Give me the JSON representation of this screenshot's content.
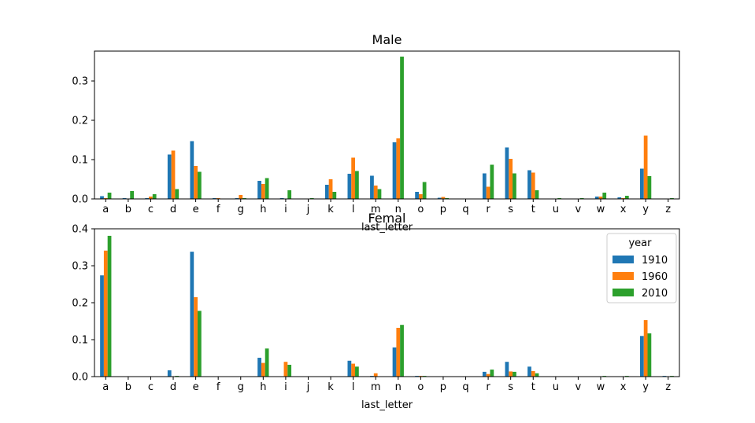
{
  "chart_data": [
    {
      "type": "bar",
      "title": "Male",
      "xlabel": "last_letter",
      "ylabel": "",
      "ylim": [
        0,
        0.376
      ],
      "yticks": [
        0.0,
        0.1,
        0.2,
        0.3
      ],
      "ytick_labels": [
        "0.0",
        "0.1",
        "0.2",
        "0.3"
      ],
      "grid": false,
      "categories": [
        "a",
        "b",
        "c",
        "d",
        "e",
        "f",
        "g",
        "h",
        "i",
        "j",
        "k",
        "l",
        "m",
        "n",
        "o",
        "p",
        "q",
        "r",
        "s",
        "t",
        "u",
        "v",
        "w",
        "x",
        "y",
        "z"
      ],
      "series": [
        {
          "name": "1910",
          "values": [
            0.007,
            0.002,
            0.002,
            0.113,
            0.147,
            0.002,
            0.002,
            0.046,
            0.002,
            0.001,
            0.036,
            0.064,
            0.059,
            0.144,
            0.018,
            0.003,
            0.0,
            0.065,
            0.131,
            0.073,
            0.001,
            0.0,
            0.006,
            0.004,
            0.077,
            0.0
          ]
        },
        {
          "name": "1960",
          "values": [
            0.002,
            0.001,
            0.006,
            0.123,
            0.084,
            0.002,
            0.01,
            0.038,
            0.001,
            0.0,
            0.05,
            0.105,
            0.034,
            0.154,
            0.012,
            0.005,
            0.0,
            0.031,
            0.102,
            0.067,
            0.0,
            0.0,
            0.006,
            0.002,
            0.161,
            0.0
          ]
        },
        {
          "name": "2010",
          "values": [
            0.016,
            0.02,
            0.012,
            0.025,
            0.069,
            0.001,
            0.002,
            0.053,
            0.022,
            0.002,
            0.018,
            0.071,
            0.025,
            0.362,
            0.043,
            0.002,
            0.0,
            0.087,
            0.065,
            0.022,
            0.002,
            0.002,
            0.016,
            0.008,
            0.058,
            0.002
          ]
        }
      ]
    },
    {
      "type": "bar",
      "title": "Femal",
      "xlabel": "last_letter",
      "ylabel": "",
      "ylim": [
        0,
        0.4
      ],
      "yticks": [
        0.0,
        0.1,
        0.2,
        0.3,
        0.4
      ],
      "ytick_labels": [
        "0.0",
        "0.1",
        "0.2",
        "0.3",
        "0.4"
      ],
      "grid": false,
      "legend": {
        "title": "year",
        "entries": [
          "1910",
          "1960",
          "2010"
        ],
        "placement": "upper right"
      },
      "categories": [
        "a",
        "b",
        "c",
        "d",
        "e",
        "f",
        "g",
        "h",
        "i",
        "j",
        "k",
        "l",
        "m",
        "n",
        "o",
        "p",
        "q",
        "r",
        "s",
        "t",
        "u",
        "v",
        "w",
        "x",
        "y",
        "z"
      ],
      "series": [
        {
          "name": "1910",
          "values": [
            0.274,
            0.0,
            0.0,
            0.017,
            0.338,
            0.0,
            0.0,
            0.051,
            0.001,
            0.0,
            0.0,
            0.043,
            0.002,
            0.079,
            0.002,
            0.0,
            0.0,
            0.013,
            0.04,
            0.027,
            0.001,
            0.0,
            0.0,
            0.0,
            0.11,
            0.002
          ]
        },
        {
          "name": "1960",
          "values": [
            0.341,
            0.0,
            0.0,
            0.001,
            0.215,
            0.0,
            0.0,
            0.037,
            0.04,
            0.0,
            0.0,
            0.035,
            0.009,
            0.132,
            0.002,
            0.0,
            0.0,
            0.007,
            0.014,
            0.015,
            0.0,
            0.0,
            0.001,
            0.0,
            0.153,
            0.0
          ]
        },
        {
          "name": "2010",
          "values": [
            0.381,
            0.0,
            0.0,
            0.002,
            0.178,
            0.0,
            0.0,
            0.076,
            0.032,
            0.0,
            0.0,
            0.027,
            0.001,
            0.14,
            0.002,
            0.0,
            0.0,
            0.019,
            0.013,
            0.009,
            0.0,
            0.0,
            0.002,
            0.002,
            0.117,
            0.002
          ]
        }
      ]
    }
  ],
  "colors": {
    "1910": "#1f77b4",
    "1960": "#ff7f0e",
    "2010": "#2ca02c",
    "axis": "#000000"
  }
}
